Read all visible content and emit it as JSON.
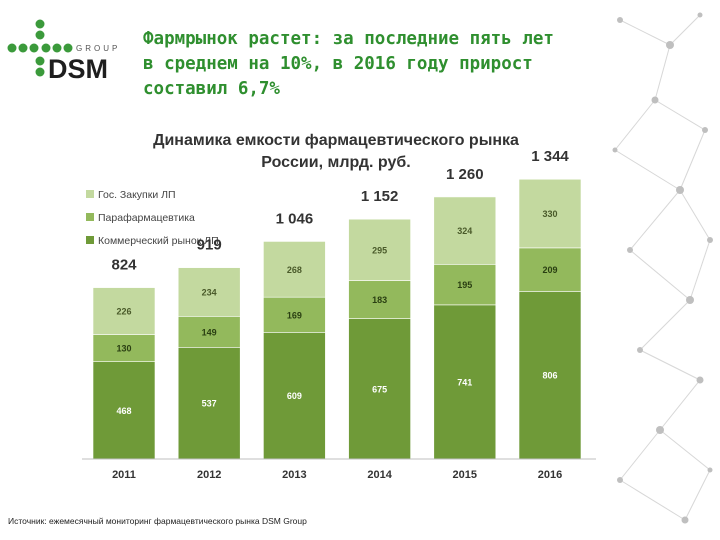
{
  "logo": {
    "brand": "DSM",
    "sub": "GROUP"
  },
  "headline": {
    "line1": "Фармрынок растет: за последние пять лет",
    "line2": "в среднем на 10%, в 2016 году прирост",
    "line3": "составил 6,7%"
  },
  "chart_data": {
    "type": "bar",
    "stacked": true,
    "title_line1": "Динамика емкости фармацевтического рынка",
    "title_line2": "России, млрд. руб.",
    "categories": [
      "2011",
      "2012",
      "2013",
      "2014",
      "2015",
      "2016"
    ],
    "series": [
      {
        "name": "Коммерческий рынок ЛП",
        "color": "#6f9a38",
        "values": [
          468,
          537,
          609,
          675,
          741,
          806
        ]
      },
      {
        "name": "Парафармацевтика",
        "color": "#93b95c",
        "values": [
          130,
          149,
          169,
          183,
          195,
          209
        ]
      },
      {
        "name": "Гос. Закупки ЛП",
        "color": "#c3d99f",
        "values": [
          226,
          234,
          268,
          295,
          324,
          330
        ]
      }
    ],
    "totals": [
      "824",
      "919",
      "1 046",
      "1 152",
      "1 260",
      "1 344"
    ],
    "legend_position": "top-left",
    "ylim": [
      0,
      1400
    ],
    "grid": false
  },
  "source_text": "Источник: ежемесячный мониторинг фармацевтического рынка DSM Group"
}
